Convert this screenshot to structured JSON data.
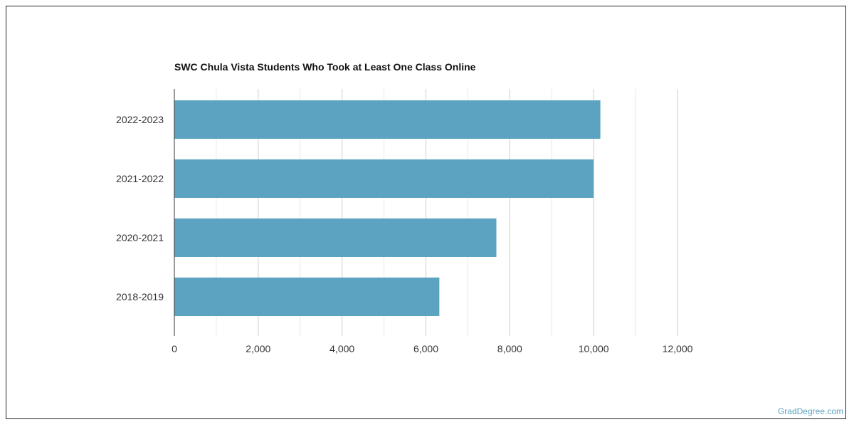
{
  "chart_data": {
    "type": "bar",
    "orientation": "horizontal",
    "title": "SWC Chula Vista Students Who Took at Least One Class Online",
    "xlabel": "",
    "ylabel": "",
    "categories": [
      "2022-2023",
      "2021-2022",
      "2020-2021",
      "2018-2019"
    ],
    "values": [
      10160,
      10000,
      7680,
      6320
    ],
    "xlim": [
      0,
      12000
    ],
    "xticks": [
      0,
      2000,
      4000,
      6000,
      8000,
      10000,
      12000
    ],
    "xtick_labels": [
      "0",
      "2,000",
      "4,000",
      "6,000",
      "8,000",
      "10,000",
      "12,000"
    ],
    "grid": true,
    "bar_color": "#5ba3c0"
  },
  "credit": "GradDegree.com"
}
